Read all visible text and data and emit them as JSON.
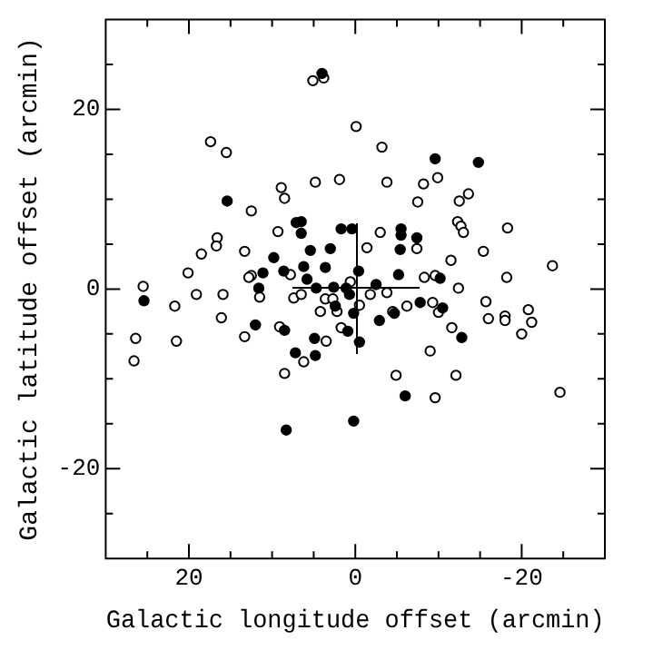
{
  "chart_data": {
    "type": "scatter",
    "xlabel": "Galactic longitude offset (arcmin)",
    "ylabel": "Galactic latitude offset (arcmin)",
    "xlim": [
      30,
      -30
    ],
    "ylim": [
      -30,
      30
    ],
    "xticks": [
      {
        "value": 25,
        "label": null
      },
      20,
      {
        "value": 15,
        "label": null
      },
      {
        "value": 10,
        "label": null
      },
      {
        "value": 5,
        "label": null
      },
      0,
      {
        "value": -5,
        "label": null
      },
      {
        "value": -10,
        "label": null
      },
      {
        "value": -15,
        "label": null
      },
      -20,
      {
        "value": -25,
        "label": null
      }
    ],
    "yticks": [
      {
        "value": -25,
        "label": null
      },
      -20,
      {
        "value": -15,
        "label": null
      },
      {
        "value": -10,
        "label": null
      },
      {
        "value": -5,
        "label": null
      },
      0,
      {
        "value": 5,
        "label": null
      },
      {
        "value": 10,
        "label": null
      },
      {
        "value": 15,
        "label": null
      },
      20,
      {
        "value": 25,
        "label": null
      }
    ],
    "grid": false,
    "legend": false,
    "marker": "circle",
    "series": [
      {
        "color": "#000000",
        "x": [
          4.0,
          15.4,
          7.1,
          6.5,
          6.5,
          1.7,
          9.8,
          5.4,
          3.0,
          8.6,
          6.2,
          3.6,
          11.1,
          5.8,
          11.6,
          4.7,
          2.6,
          0.4,
          25.4,
          12.0,
          8.5,
          4.9,
          7.2,
          4.8,
          8.3,
          2.4,
          0.9,
          0.2,
          1.1,
          0.7,
          0.2,
          -9.6,
          -14.8,
          -5.5,
          -5.5,
          -7.4,
          -5.4,
          -0.4,
          -5.2,
          -10.2,
          -2.5,
          -7.8,
          -10.5,
          -2.9,
          -4.7,
          -0.5,
          -12.8,
          -6.0
        ],
        "values": [
          24.0,
          9.8,
          7.4,
          7.5,
          6.2,
          6.7,
          3.5,
          4.3,
          4.5,
          2.0,
          2.5,
          2.4,
          1.8,
          1.1,
          0.1,
          0.1,
          0.2,
          6.7,
          -1.3,
          -4.0,
          -4.6,
          -5.5,
          -7.1,
          -7.4,
          -15.7,
          -1.9,
          -4.7,
          -2.7,
          0.1,
          -0.6,
          -14.7,
          14.5,
          14.1,
          6.7,
          6.0,
          5.7,
          4.4,
          2.0,
          1.6,
          1.2,
          0.5,
          -1.5,
          -2.1,
          -3.5,
          -2.7,
          -5.9,
          -5.4,
          -11.9
        ]
      },
      {
        "color": "#ffffff",
        "x": [
          5.1,
          3.8,
          17.4,
          15.5,
          -0.1,
          8.9,
          8.5,
          4.8,
          1.9,
          12.5,
          9.3,
          16.6,
          16.7,
          18.5,
          13.3,
          20.1,
          12.5,
          12.8,
          7.8,
          25.5,
          0.6,
          19.1,
          15.9,
          11.5,
          21.7,
          16.1,
          26.4,
          21.5,
          26.6,
          13.3,
          9.1,
          8.5,
          6.2,
          3.5,
          4.2,
          2.2,
          1.7,
          7.4,
          6.5,
          3.6,
          2.7,
          -3.2,
          -3.8,
          -8.2,
          -9.9,
          -7.5,
          -12.5,
          -13.6,
          -12.3,
          -12.7,
          -13.0,
          -18.3,
          -3.0,
          -1.4,
          -7.4,
          -11.5,
          -15.4,
          -23.7,
          -8.3,
          -9.6,
          -18.2,
          -12.4,
          -3.8,
          -1.8,
          -6.2,
          -4.5,
          -9.3,
          -10.0,
          -15.7,
          -16.0,
          -18.0,
          -18.0,
          -20.8,
          -21.2,
          -20.0,
          -11.6,
          -9.0,
          -4.9,
          -12.1,
          -9.6,
          -24.6,
          -0.5
        ],
        "values": [
          23.2,
          23.5,
          16.4,
          15.2,
          18.1,
          11.3,
          10.1,
          11.9,
          12.2,
          8.7,
          6.4,
          5.7,
          4.8,
          3.9,
          4.2,
          1.8,
          1.5,
          1.3,
          1.6,
          0.3,
          0.8,
          -0.6,
          -0.6,
          -0.9,
          -1.9,
          -3.2,
          -5.5,
          -5.8,
          -8.0,
          -5.3,
          -4.2,
          -9.4,
          -8.1,
          -5.8,
          -2.5,
          -2.5,
          -4.3,
          -1.0,
          -0.6,
          -1.1,
          -1.1,
          15.8,
          11.9,
          11.7,
          12.4,
          9.7,
          9.8,
          10.6,
          7.5,
          7.0,
          6.3,
          6.8,
          6.3,
          4.6,
          4.5,
          3.2,
          4.2,
          2.6,
          1.3,
          1.5,
          1.3,
          0.1,
          -0.4,
          -0.6,
          -1.9,
          -2.5,
          -1.5,
          -2.6,
          -1.4,
          -3.3,
          -3.0,
          -3.5,
          -2.3,
          -3.7,
          -5.0,
          -4.3,
          -6.9,
          -9.6,
          -9.6,
          -12.1,
          -11.5,
          -1.8
        ]
      }
    ]
  }
}
